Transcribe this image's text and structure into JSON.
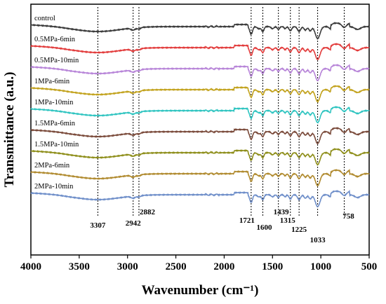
{
  "chart_data": {
    "type": "line",
    "xlabel": "Wavenumber (cm⁻¹)",
    "ylabel": "Transmittance (a.u.)",
    "xlim": [
      4000,
      500
    ],
    "x_reversed": true,
    "xticks": [
      4000,
      3500,
      3000,
      2500,
      2000,
      1500,
      1000,
      500
    ],
    "y_ticks_shown": false,
    "series": [
      {
        "name": "control",
        "color": "#3a3a3a"
      },
      {
        "name": "0.5MPa-6min",
        "color": "#e23b3b"
      },
      {
        "name": "0.5MPa-10min",
        "color": "#b784d8"
      },
      {
        "name": "1MPa-6min",
        "color": "#c2a21c"
      },
      {
        "name": "1MPa-10min",
        "color": "#2ec4c0"
      },
      {
        "name": "1.5MPa-6min",
        "color": "#7a4a3a"
      },
      {
        "name": "1.5MPa-10min",
        "color": "#8e8e1a"
      },
      {
        "name": "2MPa-6min",
        "color": "#b08a2e"
      },
      {
        "name": "2MPa-10min",
        "color": "#6e8ec9"
      }
    ],
    "reference_lines": [
      {
        "x": 3307,
        "label": "3307"
      },
      {
        "x": 2942,
        "label": "2942"
      },
      {
        "x": 2882,
        "label": "2882"
      },
      {
        "x": 1721,
        "label": "1721"
      },
      {
        "x": 1600,
        "label": "1600"
      },
      {
        "x": 1439,
        "label": "1439"
      },
      {
        "x": 1315,
        "label": "1315"
      },
      {
        "x": 1225,
        "label": "1225"
      },
      {
        "x": 1033,
        "label": "1033"
      },
      {
        "x": 758,
        "label": "758"
      }
    ]
  }
}
